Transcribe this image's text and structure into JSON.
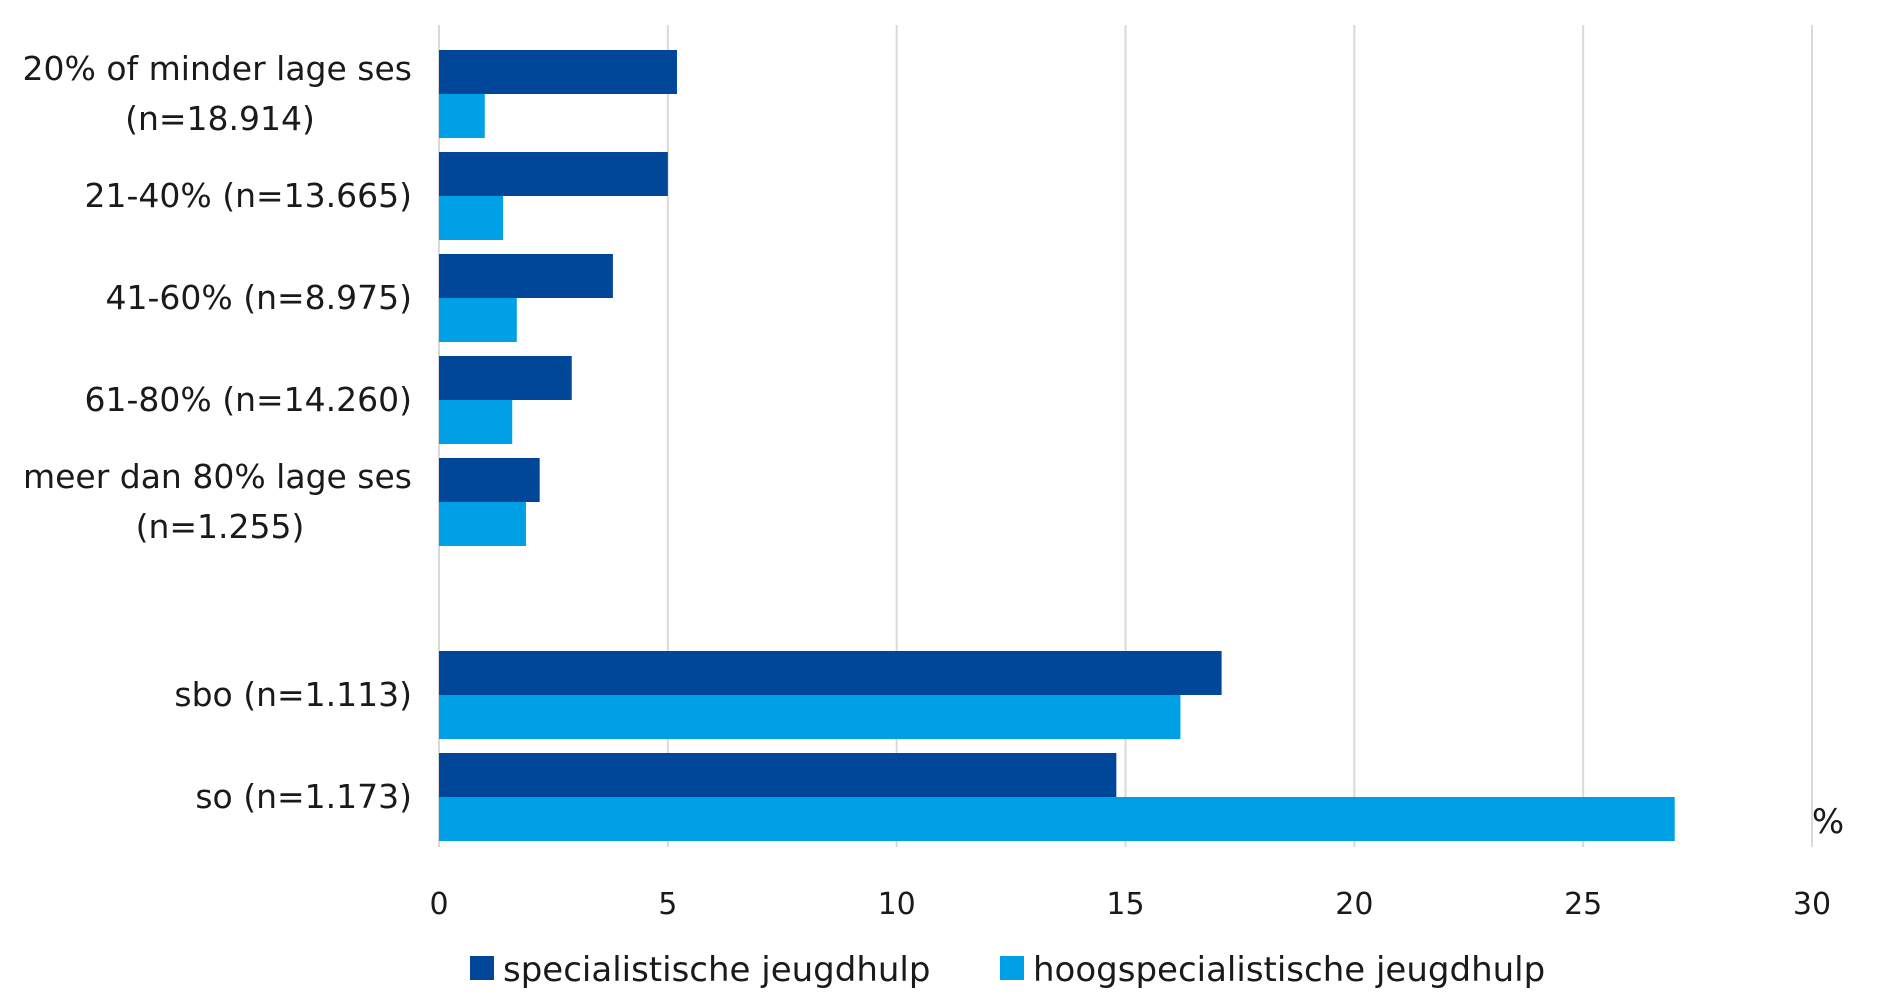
{
  "chart_data": {
    "type": "bar",
    "orientation": "horizontal",
    "categories": [
      [
        "20% of minder lage ses",
        "(n=18.914)"
      ],
      [
        "21-40% (n=13.665)"
      ],
      [
        "41-60% (n=8.975)"
      ],
      [
        "61-80% (n=14.260)"
      ],
      [
        "meer dan 80% lage ses",
        "(n=1.255)"
      ],
      [
        "sbo (n=1.113)"
      ],
      [
        "so (n=1.173)"
      ]
    ],
    "series": [
      {
        "name": "specialistische jeugdhulp",
        "color": "#00479a",
        "values": [
          5.2,
          5.0,
          3.8,
          2.9,
          2.2,
          17.1,
          14.8
        ]
      },
      {
        "name": "hoogspecialistische jeugdhulp",
        "color": "#00a0e6",
        "values": [
          1.0,
          1.4,
          1.7,
          1.6,
          1.9,
          16.2,
          27.0
        ]
      }
    ],
    "xlim": [
      0,
      30
    ],
    "xticks": [
      "0",
      "5",
      "10",
      "15",
      "20",
      "25",
      "30"
    ],
    "unit_label": "%",
    "grid": true,
    "legend_position": "bottom"
  }
}
